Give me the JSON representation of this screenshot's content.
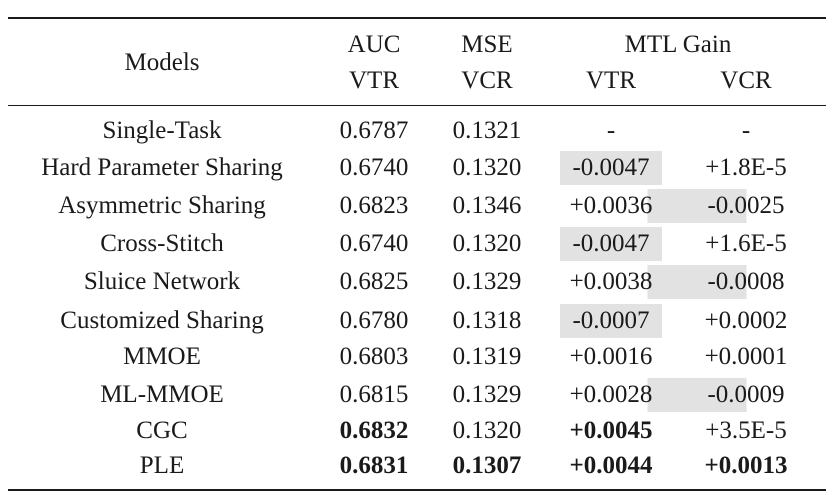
{
  "header": {
    "models": "Models",
    "auc": "AUC",
    "mse": "MSE",
    "mtl_gain": "MTL Gain",
    "vtr": "VTR",
    "vcr": "VCR",
    "gain_vtr": "VTR",
    "gain_vcr": "VCR"
  },
  "highlight_color": "#e2e2e2",
  "rows": [
    {
      "model": "Single-Task",
      "auc": "0.6787",
      "mse": "0.1321",
      "gain_vtr": "-",
      "gain_vcr": "-"
    },
    {
      "model": "Hard Parameter Sharing",
      "auc": "0.6740",
      "mse": "0.1320",
      "gain_vtr": "-0.0047",
      "gain_vcr": "+1.8E-5"
    },
    {
      "model": "Asymmetric Sharing",
      "auc": "0.6823",
      "mse": "0.1346",
      "gain_vtr": "+0.0036",
      "gain_vcr": "-0.0025"
    },
    {
      "model": "Cross-Stitch",
      "auc": "0.6740",
      "mse": "0.1320",
      "gain_vtr": "-0.0047",
      "gain_vcr": "+1.6E-5"
    },
    {
      "model": "Sluice Network",
      "auc": "0.6825",
      "mse": "0.1329",
      "gain_vtr": "+0.0038",
      "gain_vcr": "-0.0008"
    },
    {
      "model": "Customized Sharing",
      "auc": "0.6780",
      "mse": "0.1318",
      "gain_vtr": "-0.0007",
      "gain_vcr": "+0.0002"
    },
    {
      "model": "MMOE",
      "auc": "0.6803",
      "mse": "0.1319",
      "gain_vtr": "+0.0016",
      "gain_vcr": "+0.0001"
    },
    {
      "model": "ML-MMOE",
      "auc": "0.6815",
      "mse": "0.1329",
      "gain_vtr": "+0.0028",
      "gain_vcr": "-0.0009"
    },
    {
      "model": "CGC",
      "auc": "0.6832",
      "mse": "0.1320",
      "gain_vtr": "+0.0045",
      "gain_vcr": "+3.5E-5"
    },
    {
      "model": "PLE",
      "auc": "0.6831",
      "mse": "0.1307",
      "gain_vtr": "+0.0044",
      "gain_vcr": "+0.0013"
    }
  ]
}
